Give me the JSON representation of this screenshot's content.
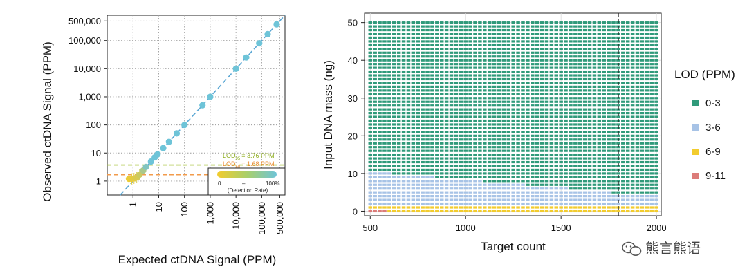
{
  "chart_data": [
    {
      "type": "scatter",
      "xlabel": "Expected ctDNA Signal (PPM)",
      "ylabel": "Observed ctDNA Signal (PPM)",
      "x_scale": "log",
      "y_scale": "log",
      "x_ticks": [
        "1",
        "10",
        "100",
        "1,000",
        "10,000",
        "100,000",
        "500,000"
      ],
      "y_ticks": [
        "1",
        "10",
        "100",
        "1,000",
        "10,000",
        "100,000",
        "500,000"
      ],
      "x_tick_values": [
        1,
        10,
        100,
        1000,
        10000,
        100000,
        500000
      ],
      "y_tick_values": [
        1,
        10,
        100,
        1000,
        10000,
        100000,
        500000
      ],
      "xlim": [
        0.1,
        800000
      ],
      "ylim": [
        0.32,
        800000
      ],
      "grid": true,
      "points": [
        {
          "x": 0.7,
          "y": 1.2,
          "rate": 0.05
        },
        {
          "x": 0.9,
          "y": 1.2,
          "rate": 0.08
        },
        {
          "x": 1.1,
          "y": 1.25,
          "rate": 0.12
        },
        {
          "x": 1.4,
          "y": 1.35,
          "rate": 0.2
        },
        {
          "x": 1.8,
          "y": 1.7,
          "rate": 0.3
        },
        {
          "x": 2.5,
          "y": 2.4,
          "rate": 0.55
        },
        {
          "x": 3.2,
          "y": 3.2,
          "rate": 0.85
        },
        {
          "x": 5,
          "y": 5,
          "rate": 1
        },
        {
          "x": 7,
          "y": 7,
          "rate": 1
        },
        {
          "x": 9,
          "y": 9,
          "rate": 1
        },
        {
          "x": 15,
          "y": 15,
          "rate": 1
        },
        {
          "x": 25,
          "y": 25,
          "rate": 1
        },
        {
          "x": 50,
          "y": 50,
          "rate": 1
        },
        {
          "x": 100,
          "y": 100,
          "rate": 1
        },
        {
          "x": 500,
          "y": 500,
          "rate": 1
        },
        {
          "x": 1000,
          "y": 1000,
          "rate": 1
        },
        {
          "x": 10000,
          "y": 10000,
          "rate": 1
        },
        {
          "x": 25000,
          "y": 25000,
          "rate": 1
        },
        {
          "x": 80000,
          "y": 80000,
          "rate": 1
        },
        {
          "x": 170000,
          "y": 170000,
          "rate": 1
        },
        {
          "x": 380000,
          "y": 380000,
          "rate": 1
        }
      ],
      "reference_lines": [
        {
          "y": 3.76,
          "color": "#a8c43a"
        },
        {
          "y": 1.68,
          "color": "#f29b4b"
        }
      ],
      "annotations": [
        {
          "sub": "95",
          "value": "= 3.76 PPM",
          "color": "#8fae1f"
        },
        {
          "sub": "50",
          "value": "= 1.68 PPM",
          "color": "#e88a2d"
        }
      ],
      "colorbar": {
        "min_label": "0",
        "mid_label": "–",
        "max_label": "100%",
        "caption": "(Detection Rate)"
      }
    },
    {
      "type": "heatmap",
      "xlabel": "Target count",
      "ylabel": "Input DNA mass (ng)",
      "x_ticks": [
        500,
        1000,
        1500,
        2000
      ],
      "y_ticks": [
        0,
        10,
        20,
        30,
        40,
        50
      ],
      "xlim": [
        470,
        2025
      ],
      "ylim": [
        -1.2,
        52.5
      ],
      "vline_x": 1800,
      "grid": true,
      "legend": {
        "title": "LOD (PPM)",
        "position": "right",
        "items": [
          {
            "label": "0-3",
            "color": "#2f9a7a"
          },
          {
            "label": "3-6",
            "color": "#a7c3e6"
          },
          {
            "label": "6-9",
            "color": "#f2cc2e"
          },
          {
            "label": "9-11",
            "color": "#dc7c79"
          }
        ]
      }
    }
  ],
  "watermark": "熊言熊语",
  "colors": {
    "line": "#5aa7d4",
    "grid": "#9a9a9a",
    "point": "#6ec4d8"
  }
}
